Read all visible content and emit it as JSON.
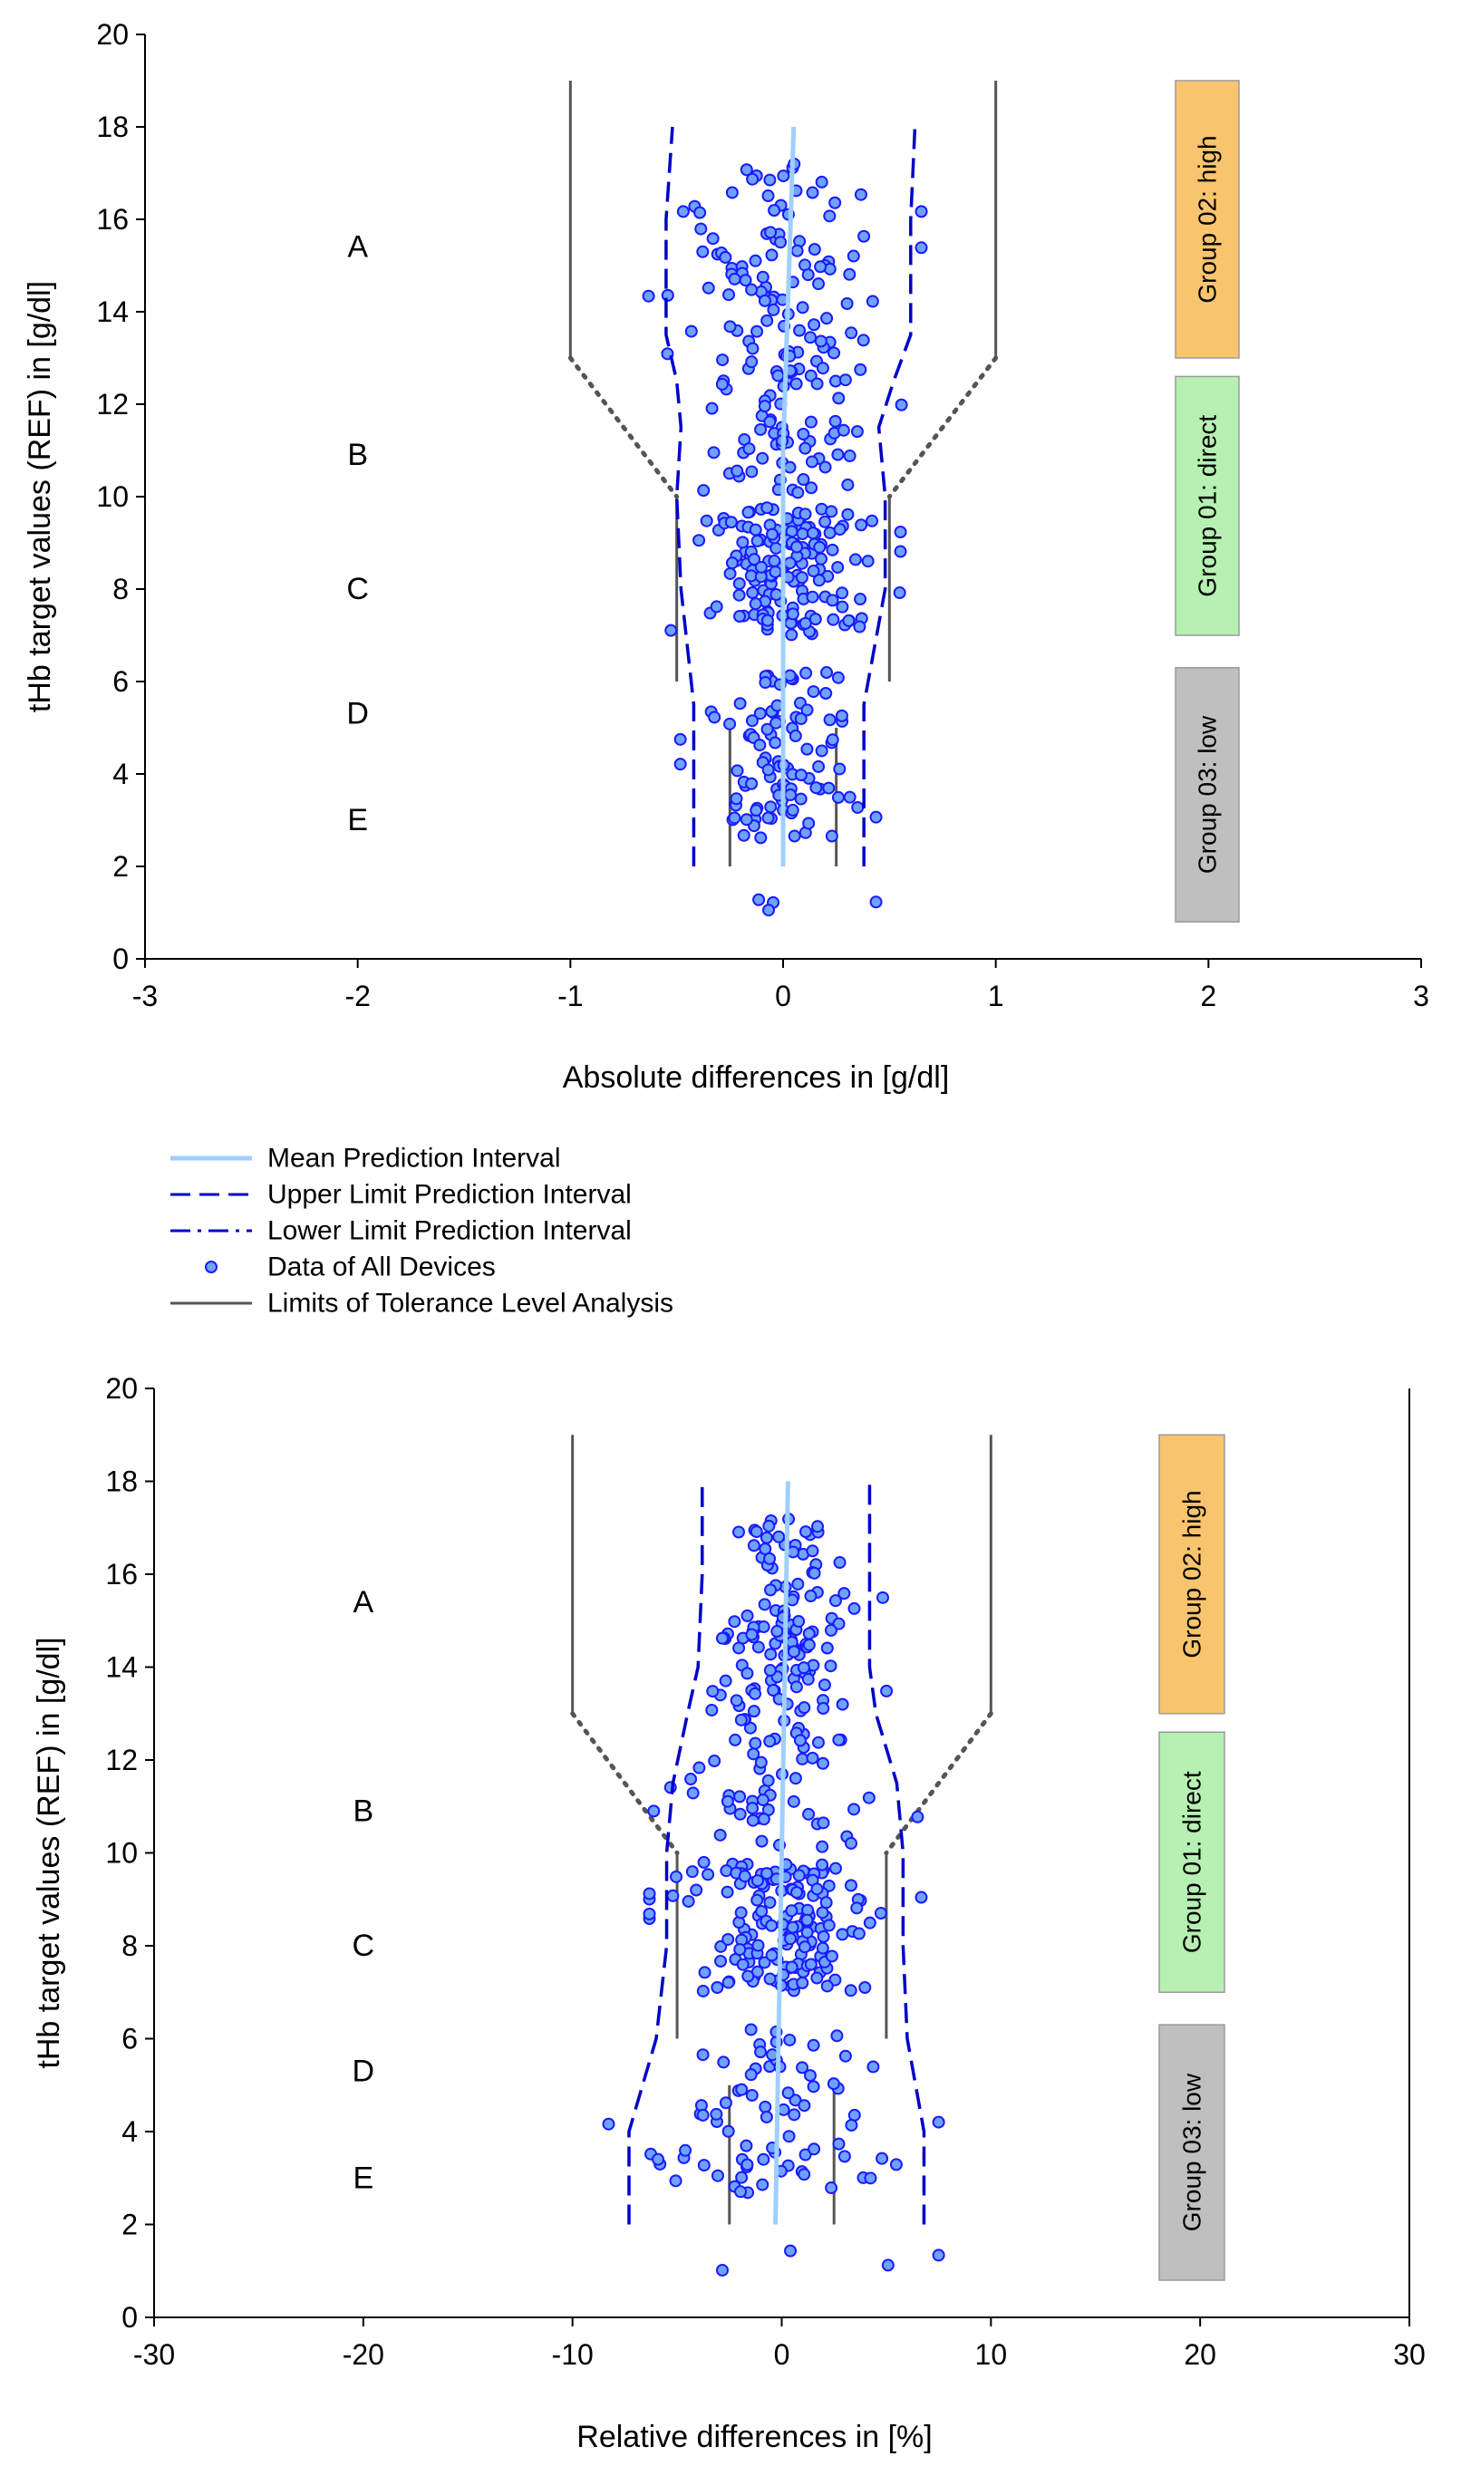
{
  "chart_data": [
    {
      "type": "scatter",
      "title": "",
      "xlabel": "Absolute differences in [g/dl]",
      "ylabel": "tHb target values (REF) in [g/dl]",
      "xlim": [
        -3,
        3
      ],
      "ylim": [
        0,
        20
      ],
      "x_ticks": [
        "-3",
        "-2",
        "-1",
        "0",
        "1",
        "2",
        "3"
      ],
      "y_ticks": [
        "0",
        "2",
        "4",
        "6",
        "8",
        "10",
        "12",
        "14",
        "16",
        "18",
        "20"
      ],
      "region_labels": [
        {
          "text": "A",
          "x": -2,
          "y": 15.4
        },
        {
          "text": "B",
          "x": -2,
          "y": 10.9
        },
        {
          "text": "C",
          "x": -2,
          "y": 8.0
        },
        {
          "text": "D",
          "x": -2,
          "y": 5.3
        },
        {
          "text": "E",
          "x": -2,
          "y": 3.0
        }
      ],
      "groups": [
        {
          "label": "Group 02: high",
          "y_range": [
            13.0,
            19.0
          ],
          "color": "#f9c46e"
        },
        {
          "label": "Group 01: direct",
          "y_range": [
            7.0,
            12.6
          ],
          "color": "#b6f0b2"
        },
        {
          "label": "Group 03: low",
          "y_range": [
            0.8,
            6.3
          ],
          "color": "#bfbfbf"
        }
      ],
      "series": [
        {
          "name": "Mean Prediction Interval",
          "style": "solid",
          "color": "#9fcfff",
          "points": [
            [
              0.0,
              2.0
            ],
            [
              0.0,
              11.0
            ],
            [
              0.05,
              18.0
            ]
          ]
        },
        {
          "name": "Upper Limit Prediction Interval",
          "style": "dashed",
          "color": "#0000c8",
          "points": [
            [
              0.38,
              2.0
            ],
            [
              0.38,
              5.5
            ],
            [
              0.48,
              8.0
            ],
            [
              0.48,
              10.0
            ],
            [
              0.45,
              11.5
            ],
            [
              0.52,
              12.5
            ],
            [
              0.6,
              13.5
            ],
            [
              0.6,
              16.0
            ],
            [
              0.62,
              18.0
            ]
          ]
        },
        {
          "name": "Lower Limit Prediction Interval",
          "style": "dashed",
          "color": "#0000c8",
          "points": [
            [
              -0.42,
              2.0
            ],
            [
              -0.42,
              5.5
            ],
            [
              -0.48,
              8.0
            ],
            [
              -0.5,
              10.0
            ],
            [
              -0.48,
              11.5
            ],
            [
              -0.5,
              12.5
            ],
            [
              -0.55,
              13.5
            ],
            [
              -0.55,
              16.0
            ],
            [
              -0.52,
              18.0
            ]
          ]
        },
        {
          "name": "Limits of Tolerance Level Analysis",
          "style": "solid",
          "color": "#555555",
          "segments": [
            [
              [
                -1.0,
                13.0
              ],
              [
                -1.0,
                19.0
              ]
            ],
            [
              [
                1.0,
                13.0
              ],
              [
                1.0,
                19.0
              ]
            ],
            [
              [
                -0.5,
                6.0
              ],
              [
                -0.5,
                10.0
              ]
            ],
            [
              [
                0.5,
                6.0
              ],
              [
                0.5,
                10.0
              ]
            ],
            [
              [
                -0.25,
                2.0
              ],
              [
                -0.25,
                5.0
              ]
            ],
            [
              [
                0.25,
                2.0
              ],
              [
                0.25,
                5.0
              ]
            ]
          ],
          "connectors": [
            [
              [
                -1.0,
                13.0
              ],
              [
                -0.5,
                10.0
              ]
            ],
            [
              [
                1.0,
                13.0
              ],
              [
                0.5,
                10.0
              ]
            ]
          ]
        },
        {
          "name": "Data of All Devices",
          "style": "points",
          "color": "#1a1aff",
          "x_range": [
            -0.75,
            0.65
          ],
          "y_range": [
            1.0,
            17.2
          ],
          "seed": 17,
          "n": 430
        }
      ]
    },
    {
      "type": "scatter",
      "title": "",
      "xlabel": "Relative differences in [%]",
      "ylabel": "tHb target values (REF) in [g/dl]",
      "xlim": [
        -30,
        30
      ],
      "ylim": [
        0,
        20
      ],
      "x_ticks": [
        "-30",
        "-20",
        "-10",
        "0",
        "10",
        "20",
        "30"
      ],
      "y_ticks": [
        "0",
        "2",
        "4",
        "6",
        "8",
        "10",
        "12",
        "14",
        "16",
        "18",
        "20"
      ],
      "region_labels": [
        {
          "text": "A",
          "x": -20,
          "y": 15.4
        },
        {
          "text": "B",
          "x": -20,
          "y": 10.9
        },
        {
          "text": "C",
          "x": -20,
          "y": 8.0
        },
        {
          "text": "D",
          "x": -20,
          "y": 5.3
        },
        {
          "text": "E",
          "x": -20,
          "y": 3.0
        }
      ],
      "groups": [
        {
          "label": "Group 02: high",
          "y_range": [
            13.0,
            19.0
          ],
          "color": "#f9c46e"
        },
        {
          "label": "Group 01: direct",
          "y_range": [
            7.0,
            12.6
          ],
          "color": "#b6f0b2"
        },
        {
          "label": "Group 03: low",
          "y_range": [
            0.8,
            6.3
          ],
          "color": "#bfbfbf"
        }
      ],
      "series": [
        {
          "name": "Mean Prediction Interval",
          "style": "solid",
          "color": "#9fcfff",
          "points": [
            [
              -0.3,
              2.0
            ],
            [
              0.0,
              10.0
            ],
            [
              0.3,
              18.0
            ]
          ]
        },
        {
          "name": "Upper Limit Prediction Interval",
          "style": "dashed",
          "color": "#0000c8",
          "points": [
            [
              6.8,
              2.0
            ],
            [
              6.8,
              4.0
            ],
            [
              6.0,
              6.0
            ],
            [
              5.8,
              8.0
            ],
            [
              5.8,
              10.0
            ],
            [
              5.5,
              11.5
            ],
            [
              4.5,
              13.0
            ],
            [
              4.2,
              14.0
            ],
            [
              4.2,
              16.0
            ],
            [
              4.2,
              18.0
            ]
          ]
        },
        {
          "name": "Lower Limit Prediction Interval",
          "style": "dashed",
          "color": "#0000c8",
          "points": [
            [
              -7.3,
              2.0
            ],
            [
              -7.3,
              4.0
            ],
            [
              -6.0,
              6.0
            ],
            [
              -5.5,
              8.0
            ],
            [
              -5.5,
              10.0
            ],
            [
              -5.2,
              11.5
            ],
            [
              -4.5,
              13.0
            ],
            [
              -4.0,
              14.0
            ],
            [
              -3.8,
              16.0
            ],
            [
              -3.8,
              18.0
            ]
          ]
        },
        {
          "name": "Limits of Tolerance Level Analysis",
          "style": "solid",
          "color": "#555555",
          "segments": [
            [
              [
                -10.0,
                13.0
              ],
              [
                -10.0,
                19.0
              ]
            ],
            [
              [
                10.0,
                13.0
              ],
              [
                10.0,
                19.0
              ]
            ],
            [
              [
                -5.0,
                6.0
              ],
              [
                -5.0,
                10.0
              ]
            ],
            [
              [
                5.0,
                6.0
              ],
              [
                5.0,
                10.0
              ]
            ],
            [
              [
                -2.5,
                2.0
              ],
              [
                -2.5,
                5.0
              ]
            ],
            [
              [
                2.5,
                2.0
              ],
              [
                2.5,
                5.0
              ]
            ]
          ],
          "connectors": [
            [
              [
                -10.0,
                13.0
              ],
              [
                -5.0,
                10.0
              ]
            ],
            [
              [
                10.0,
                13.0
              ],
              [
                5.0,
                10.0
              ]
            ]
          ]
        },
        {
          "name": "Data of All Devices",
          "style": "points",
          "color": "#1a1aff",
          "x_range": [
            -8.5,
            7.5
          ],
          "y_range": [
            1.0,
            17.2
          ],
          "seed": 29,
          "n": 430
        }
      ]
    }
  ],
  "legend": {
    "items": [
      {
        "label": "Mean Prediction Interval",
        "kind": "line",
        "color": "#9fcfff"
      },
      {
        "label": "Upper Limit Prediction Interval",
        "kind": "dashed",
        "color": "#0000c8"
      },
      {
        "label": "Lower Limit Prediction Interval",
        "kind": "dashdot",
        "color": "#0000c8"
      },
      {
        "label": "Data of All Devices",
        "kind": "marker",
        "color": "#1a1aff"
      },
      {
        "label": "Limits of Tolerance Level Analysis",
        "kind": "line",
        "color": "#555555"
      }
    ]
  }
}
